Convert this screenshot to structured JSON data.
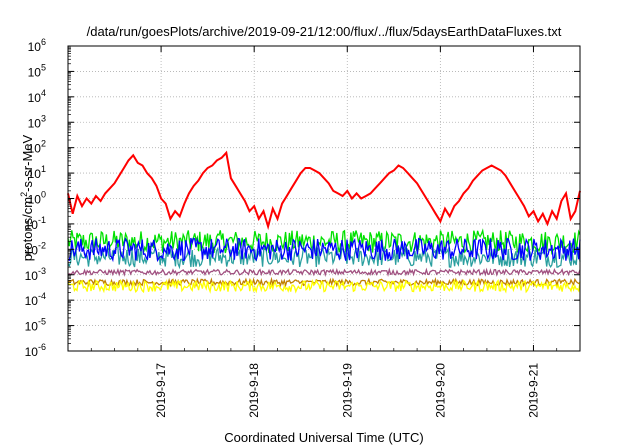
{
  "chart_data": {
    "type": "line",
    "title": "/data/run/goesPlots/archive/2019-09-21/12:00/flux/../flux/5daysEarthDataFluxes.txt",
    "xlabel": "Coordinated Universal Time (UTC)",
    "ylabel": "protons/cm²-s-sr-MeV",
    "ylabel_parts": {
      "pre": "protons/cm",
      "sup": "2",
      "post": "-s-sr-MeV"
    },
    "yscale": "log",
    "ylim_exp": [
      -6,
      6
    ],
    "y_ticks": [
      {
        "base": "10",
        "exp": "-6"
      },
      {
        "base": "10",
        "exp": "-5"
      },
      {
        "base": "10",
        "exp": "-4"
      },
      {
        "base": "10",
        "exp": "-3"
      },
      {
        "base": "10",
        "exp": "-2"
      },
      {
        "base": "10",
        "exp": "-1"
      },
      {
        "base": "10",
        "exp": "0"
      },
      {
        "base": "10",
        "exp": "1"
      },
      {
        "base": "10",
        "exp": "2"
      },
      {
        "base": "10",
        "exp": "3"
      },
      {
        "base": "10",
        "exp": "4"
      },
      {
        "base": "10",
        "exp": "5"
      },
      {
        "base": "10",
        "exp": "6"
      }
    ],
    "xlim": [
      "2019-09-16 00:00",
      "2019-09-21 12:00"
    ],
    "x_ticks": [
      "2019-9-17",
      "2019-9-18",
      "2019-9-19",
      "2019-9-20",
      "2019-9-21"
    ],
    "grid": true,
    "series": [
      {
        "color": "#ff0000",
        "x_days": [
          0.0,
          0.05,
          0.1,
          0.15,
          0.2,
          0.25,
          0.3,
          0.35,
          0.4,
          0.45,
          0.5,
          0.55,
          0.6,
          0.65,
          0.7,
          0.75,
          0.8,
          0.85,
          0.9,
          0.95,
          1.0,
          1.05,
          1.1,
          1.15,
          1.2,
          1.25,
          1.3,
          1.35,
          1.4,
          1.45,
          1.5,
          1.55,
          1.6,
          1.65,
          1.7,
          1.75,
          1.8,
          1.85,
          1.9,
          1.95,
          2.0,
          2.05,
          2.1,
          2.15,
          2.2,
          2.25,
          2.3,
          2.35,
          2.4,
          2.45,
          2.5,
          2.55,
          2.6,
          2.65,
          2.7,
          2.75,
          2.8,
          2.85,
          2.9,
          2.95,
          3.0,
          3.05,
          3.1,
          3.15,
          3.2,
          3.25,
          3.3,
          3.35,
          3.4,
          3.45,
          3.5,
          3.55,
          3.6,
          3.65,
          3.7,
          3.75,
          3.8,
          3.85,
          3.9,
          3.95,
          4.0,
          4.05,
          4.1,
          4.15,
          4.2,
          4.25,
          4.3,
          4.35,
          4.4,
          4.45,
          4.5,
          4.55,
          4.6,
          4.65,
          4.7,
          4.75,
          4.8,
          4.85,
          4.9,
          4.95,
          5.0,
          5.05,
          5.1,
          5.15,
          5.2,
          5.25,
          5.3,
          5.35,
          5.4,
          5.45,
          5.5
        ],
        "log10": [
          0.2,
          -0.6,
          0.1,
          -0.3,
          0.0,
          -0.2,
          0.1,
          -0.1,
          0.2,
          0.4,
          0.6,
          0.9,
          1.2,
          1.5,
          1.7,
          1.4,
          1.3,
          1.0,
          0.8,
          0.5,
          0.0,
          -0.2,
          -0.8,
          -0.5,
          -0.7,
          -0.2,
          0.2,
          0.5,
          0.7,
          1.0,
          1.2,
          1.3,
          1.5,
          1.6,
          1.8,
          0.8,
          0.5,
          0.2,
          -0.1,
          -0.5,
          -0.3,
          -0.8,
          -0.5,
          -1.1,
          -0.4,
          -0.8,
          -0.2,
          0.1,
          0.4,
          0.7,
          1.0,
          1.2,
          1.2,
          1.1,
          1.0,
          0.8,
          0.6,
          0.3,
          0.2,
          0.1,
          0.3,
          0.0,
          0.2,
          0.0,
          0.1,
          0.2,
          0.4,
          0.6,
          0.8,
          1.0,
          1.1,
          1.3,
          1.2,
          1.0,
          0.8,
          0.6,
          0.3,
          0.0,
          -0.3,
          -0.6,
          -0.9,
          -0.4,
          -0.7,
          -0.3,
          -0.1,
          0.2,
          0.4,
          0.7,
          0.9,
          1.1,
          1.2,
          1.3,
          1.2,
          1.1,
          0.9,
          0.6,
          0.3,
          0.0,
          -0.3,
          -0.7,
          -0.5,
          -0.9,
          -0.6,
          -1.0,
          -0.5,
          -0.8,
          -0.1,
          0.2,
          -0.8,
          -0.5,
          0.3
        ]
      },
      {
        "color": "#00e000",
        "level_log10": -1.7,
        "noise": 0.45
      },
      {
        "color": "#2b9f9f",
        "level_log10": -2.3,
        "noise": 0.4
      },
      {
        "color": "#0000ff",
        "level_log10": -2.0,
        "noise": 0.45
      },
      {
        "color": "#ffff00",
        "level_log10": -3.45,
        "noise": 0.22
      },
      {
        "color": "#c08000",
        "level_log10": -3.3,
        "noise": 0.12
      },
      {
        "color": "#a05080",
        "level_log10": -2.9,
        "noise": 0.1
      }
    ]
  }
}
